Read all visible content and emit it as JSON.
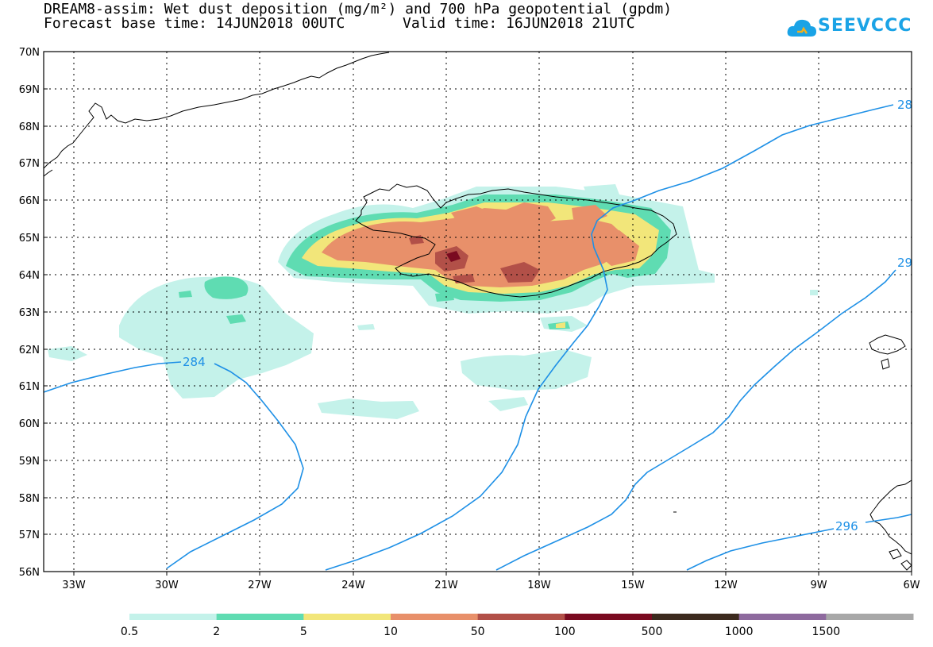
{
  "title_line1": "DREAM8-assim: Wet dust deposition (mg/m²) and 700 hPa geopotential (gpdm)",
  "title_line2_base": "Forecast base time: 14JUN2018 00UTC",
  "title_line2_valid": "Valid time: 16JUN2018 21UTC",
  "logo_text": "SEEVCCC",
  "logo_icon": "cloud-icon",
  "lat_labels": [
    "70N",
    "69N",
    "68N",
    "67N",
    "66N",
    "65N",
    "64N",
    "63N",
    "62N",
    "61N",
    "60N",
    "59N",
    "58N",
    "57N",
    "56N"
  ],
  "lon_labels": [
    "33W",
    "30W",
    "27W",
    "24W",
    "21W",
    "18W",
    "15W",
    "12W",
    "9W",
    "6W"
  ],
  "contour_labels": [
    "284",
    "28",
    "29",
    "296"
  ],
  "colorbar": {
    "labels": [
      "0.5",
      "2",
      "5",
      "10",
      "50",
      "100",
      "500",
      "1000",
      "1500"
    ],
    "colors": [
      "#c4f2ea",
      "#5fdcb2",
      "#f2e67a",
      "#e8906a",
      "#b25048",
      "#7a0a20",
      "#3c2a1e",
      "#8e6a9e",
      "#a8a8a8"
    ]
  },
  "colors": {
    "contour": "#1e90e6",
    "coast": "#000000"
  }
}
